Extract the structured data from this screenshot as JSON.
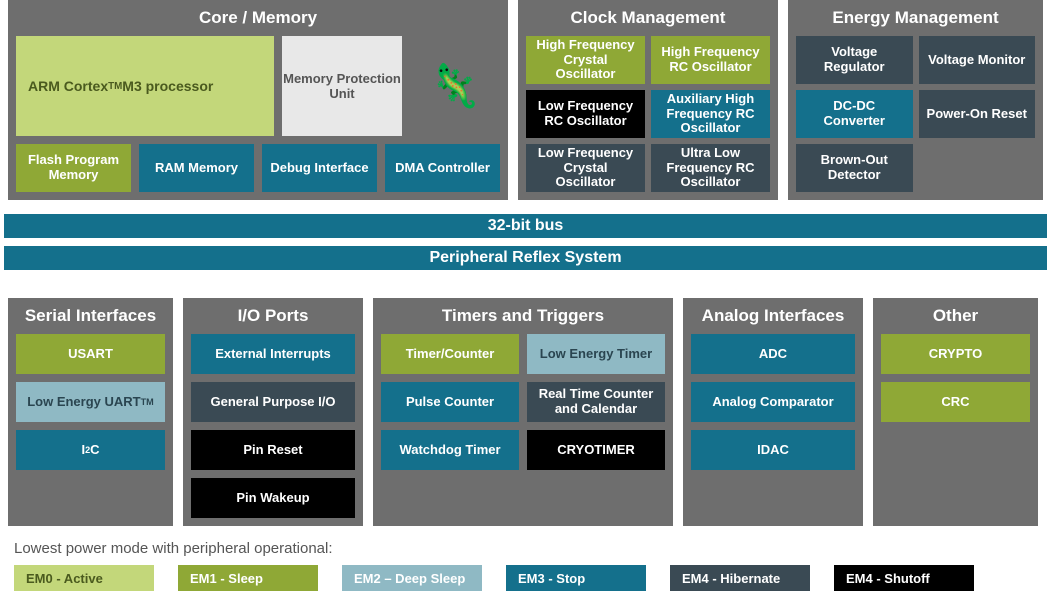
{
  "colors": {
    "panel_bg": "#6e6e6e",
    "em0": "#c3d77a",
    "em0_text": "#4a5a1e",
    "em1": "#8fa836",
    "em2": "#8fb9c4",
    "em3": "#14708c",
    "em4h": "#3a4a54",
    "em4s": "#000000",
    "mpu_bg": "#e8e8e8"
  },
  "core": {
    "title": "Core / Memory",
    "processor_html": "ARM Cortex<sup>TM</sup> M3 processor",
    "mpu": "Memory Protection Unit",
    "lizard": "🦎",
    "bottom": [
      {
        "label": "Flash Program Memory",
        "color_key": "em1"
      },
      {
        "label": "RAM Memory",
        "color_key": "em3"
      },
      {
        "label": "Debug Interface",
        "color_key": "em3"
      },
      {
        "label": "DMA Controller",
        "color_key": "em3"
      }
    ]
  },
  "clock": {
    "title": "Clock Management",
    "blocks": [
      {
        "label": "High Frequency Crystal Oscillator",
        "color_key": "em1"
      },
      {
        "label": "High Frequency RC Oscillator",
        "color_key": "em1"
      },
      {
        "label": "Low Frequency RC Oscillator",
        "color_key": "em4s"
      },
      {
        "label": "Auxiliary High Frequency RC Oscillator",
        "color_key": "em3"
      },
      {
        "label": "Low Frequency Crystal Oscillator",
        "color_key": "em4h"
      },
      {
        "label": "Ultra Low Frequency RC Oscillator",
        "color_key": "em4h"
      }
    ]
  },
  "energy": {
    "title": "Energy Management",
    "blocks": [
      {
        "label": "Voltage Regulator",
        "color_key": "em4h"
      },
      {
        "label": "Voltage Monitor",
        "color_key": "em4h"
      },
      {
        "label": "DC-DC Converter",
        "color_key": "em3"
      },
      {
        "label": "Power-On Reset",
        "color_key": "em4h"
      },
      {
        "label": "Brown-Out Detector",
        "color_key": "em4h"
      }
    ]
  },
  "bus1": "32-bit bus",
  "bus2": "Peripheral Reflex System",
  "serial": {
    "title": "Serial Interfaces",
    "blocks": [
      {
        "label": "USART",
        "color_key": "em1"
      },
      {
        "html": "Low Energy UART<sup>TM</sup>",
        "color_key": "em2"
      },
      {
        "html": "I<sup>2</sup>C",
        "color_key": "em3"
      }
    ]
  },
  "io": {
    "title": "I/O Ports",
    "blocks": [
      {
        "label": "External Interrupts",
        "color_key": "em3"
      },
      {
        "label": "General Purpose I/O",
        "color_key": "em4h"
      },
      {
        "label": "Pin Reset",
        "color_key": "em4s"
      },
      {
        "label": "Pin Wakeup",
        "color_key": "em4s"
      }
    ]
  },
  "timers": {
    "title": "Timers and Triggers",
    "blocks": [
      {
        "label": "Timer/Counter",
        "color_key": "em1"
      },
      {
        "label": "Low Energy Timer",
        "color_key": "em2"
      },
      {
        "label": "Pulse Counter",
        "color_key": "em3"
      },
      {
        "label": "Real Time Counter and Calendar",
        "color_key": "em4h"
      },
      {
        "label": "Watchdog Timer",
        "color_key": "em3"
      },
      {
        "label": "CRYOTIMER",
        "color_key": "em4s"
      }
    ]
  },
  "analog": {
    "title": "Analog Interfaces",
    "blocks": [
      {
        "label": "ADC",
        "color_key": "em3"
      },
      {
        "label": "Analog Comparator",
        "color_key": "em3"
      },
      {
        "label": "IDAC",
        "color_key": "em3"
      }
    ]
  },
  "other": {
    "title": "Other",
    "blocks": [
      {
        "label": "CRYPTO",
        "color_key": "em1"
      },
      {
        "label": "CRC",
        "color_key": "em1"
      }
    ]
  },
  "legend": {
    "caption": "Lowest power mode with peripheral operational:",
    "items": [
      {
        "label": "EM0 - Active",
        "color_key": "em0",
        "text_dark": true
      },
      {
        "label": "EM1 - Sleep",
        "color_key": "em1"
      },
      {
        "label": "EM2 – Deep Sleep",
        "color_key": "em2"
      },
      {
        "label": "EM3 - Stop",
        "color_key": "em3"
      },
      {
        "label": "EM4 - Hibernate",
        "color_key": "em4h"
      },
      {
        "label": "EM4 - Shutoff",
        "color_key": "em4s"
      }
    ]
  }
}
